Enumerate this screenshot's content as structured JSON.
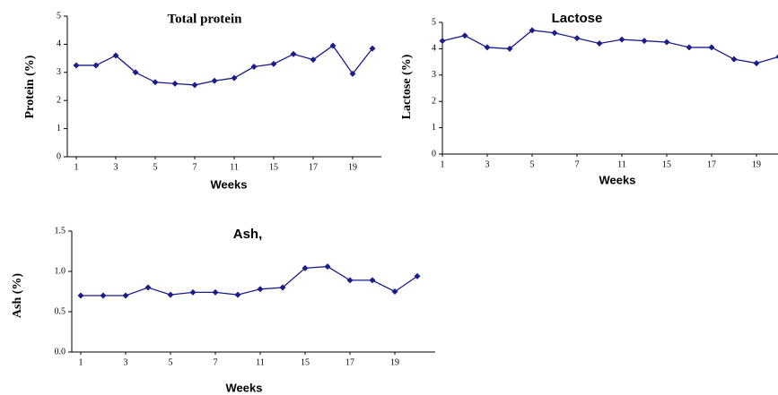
{
  "chart_data": [
    {
      "type": "line",
      "title": "Total protein",
      "ylabel": "Protein (%)",
      "xlabel": "Weeks",
      "categories": [
        "1",
        null,
        "3",
        null,
        "5",
        null,
        "7",
        null,
        "11",
        null,
        "15",
        null,
        "17",
        null,
        "19",
        null
      ],
      "series": [
        {
          "name": "Total protein",
          "color": "#1c1c8a",
          "values": [
            3.25,
            3.25,
            3.6,
            3.0,
            2.65,
            2.6,
            2.55,
            2.7,
            2.8,
            3.2,
            3.3,
            3.65,
            3.45,
            3.95,
            2.95,
            3.85
          ]
        }
      ],
      "ylim": [
        0,
        5
      ],
      "yticks": [
        0,
        1,
        2,
        3,
        4,
        5
      ]
    },
    {
      "type": "line",
      "title": "Lactose",
      "ylabel": "Lactose (%)",
      "xlabel": "Weeks",
      "categories": [
        "1",
        null,
        "3",
        null,
        "5",
        null,
        "7",
        null,
        "11",
        null,
        "15",
        null,
        "17",
        null,
        "19",
        null
      ],
      "series": [
        {
          "name": "Lactose",
          "color": "#1c1c8a",
          "values": [
            4.3,
            4.5,
            4.05,
            4.0,
            4.7,
            4.6,
            4.4,
            4.2,
            4.35,
            4.3,
            4.25,
            4.05,
            4.05,
            3.6,
            3.45,
            3.7
          ]
        }
      ],
      "ylim": [
        0,
        5
      ],
      "yticks": [
        0,
        1,
        2,
        3,
        4,
        5
      ]
    },
    {
      "type": "line",
      "title": "Ash,",
      "ylabel": "Ash (%)",
      "xlabel": "Weeks",
      "categories": [
        "1",
        null,
        "3",
        null,
        "5",
        null,
        "7",
        null,
        "11",
        null,
        "15",
        null,
        "17",
        null,
        "19",
        null
      ],
      "series": [
        {
          "name": "Ash",
          "color": "#1c1c8a",
          "values": [
            0.7,
            0.7,
            0.7,
            0.8,
            0.71,
            0.74,
            0.74,
            0.71,
            0.78,
            0.8,
            1.04,
            1.06,
            0.89,
            0.89,
            0.75,
            0.94
          ]
        }
      ],
      "ylim": [
        0,
        1.5
      ],
      "yticks": [
        {
          "value": 0,
          "label": "0.0"
        },
        0.5,
        {
          "value": 1,
          "label": "1.0"
        },
        1.5
      ]
    }
  ]
}
